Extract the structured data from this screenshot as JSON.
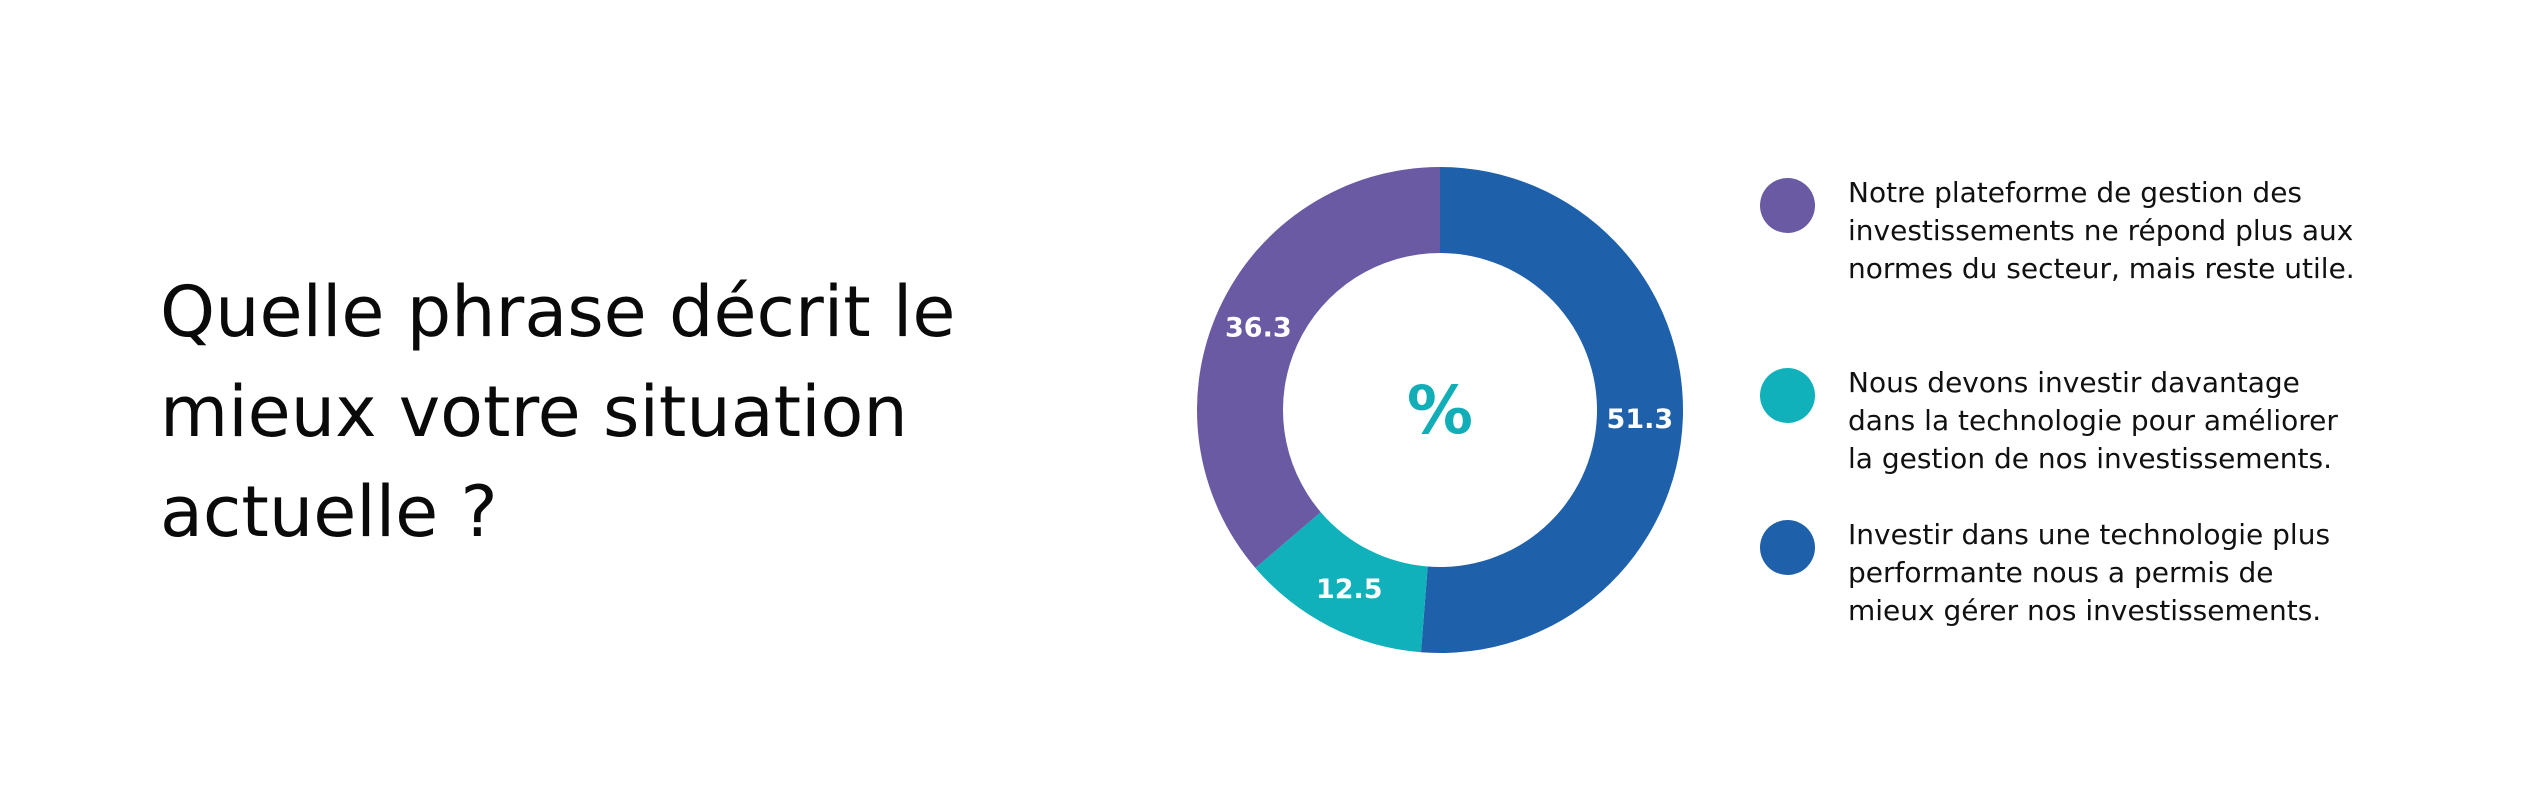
{
  "title": "Quelle phrase décrit le\nmieux votre situation\nactuelle ?",
  "chart_data": {
    "type": "pie",
    "center_label": "%",
    "slices": [
      {
        "label": "Investir dans une technologie plus\nperformante nous a permis  de\nmieux gérer nos investissements.",
        "value": 51.3,
        "value_label": "51.3",
        "color": "#1f60aa"
      },
      {
        "label": "Nous devons investir davantage\ndans la technologie pour améliorer\nla gestion de nos investissements.",
        "value": 12.5,
        "value_label": "12.5",
        "color": "#10b1ba"
      },
      {
        "label": "Notre plateforme de gestion des\ninvestissements ne répond plus aux\nnormes du secteur, mais reste utile.",
        "value": 36.3,
        "value_label": "36.3",
        "color": "#6a5aa4"
      }
    ],
    "legend_order": [
      2,
      1,
      0
    ],
    "legend_placement": "right"
  }
}
